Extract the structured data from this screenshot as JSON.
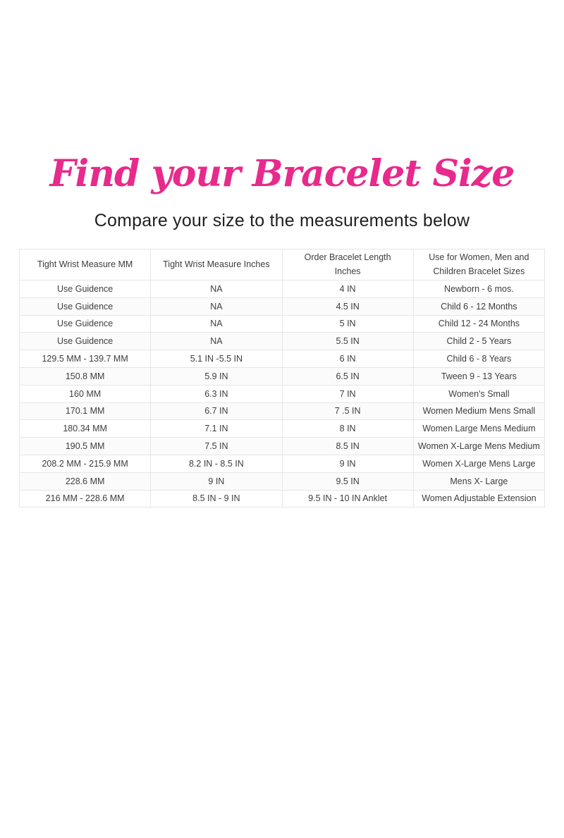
{
  "header": {
    "title": "Find your Bracelet Size",
    "subtitle": "Compare your size to the measurements below"
  },
  "colors": {
    "title_pink": "#e72a8c",
    "subtitle_text": "#1f1f1f",
    "table_text": "#3d3d3d",
    "table_border": "#e5e5e5"
  },
  "chart_data": {
    "type": "table",
    "title": "Find your Bracelet Size",
    "subtitle": "Compare your size to the measurements below",
    "columns": [
      "Tight Wrist Measure MM",
      "Tight Wrist Measure Inches",
      "Order Bracelet Length Inches",
      "Use for Women, Men and Children Bracelet Sizes"
    ],
    "rows": [
      [
        "Use Guidence",
        "NA",
        "4 IN",
        "Newborn - 6 mos."
      ],
      [
        "Use Guidence",
        "NA",
        "4.5 IN",
        "Child 6 - 12 Months"
      ],
      [
        "Use Guidence",
        "NA",
        "5 IN",
        "Child 12 - 24 Months"
      ],
      [
        "Use Guidence",
        "NA",
        "5.5 IN",
        "Child 2 - 5 Years"
      ],
      [
        "129.5 MM - 139.7 MM",
        "5.1 IN -5.5 IN",
        "6 IN",
        "Child 6 - 8 Years"
      ],
      [
        "150.8 MM",
        "5.9 IN",
        "6.5 IN",
        "Tween 9 - 13 Years"
      ],
      [
        "160 MM",
        "6.3 IN",
        "7 IN",
        "Women's Small"
      ],
      [
        "170.1 MM",
        "6.7 IN",
        "7 .5 IN",
        "Women Medium Mens Small"
      ],
      [
        "180.34 MM",
        "7.1 IN",
        "8 IN",
        "Women Large Mens Medium"
      ],
      [
        "190.5 MM",
        "7.5 IN",
        "8.5 IN",
        "Women X-Large Mens Medium"
      ],
      [
        "208.2 MM - 215.9 MM",
        "8.2 IN - 8.5 IN",
        "9 IN",
        "Women X-Large Mens Large"
      ],
      [
        "228.6 MM",
        "9 IN",
        "9.5 IN",
        "Mens X- Large"
      ],
      [
        "216 MM - 228.6 MM",
        "8.5 IN - 9 IN",
        "9.5 IN - 10 IN Anklet",
        "Women Adjustable Extension"
      ]
    ]
  }
}
